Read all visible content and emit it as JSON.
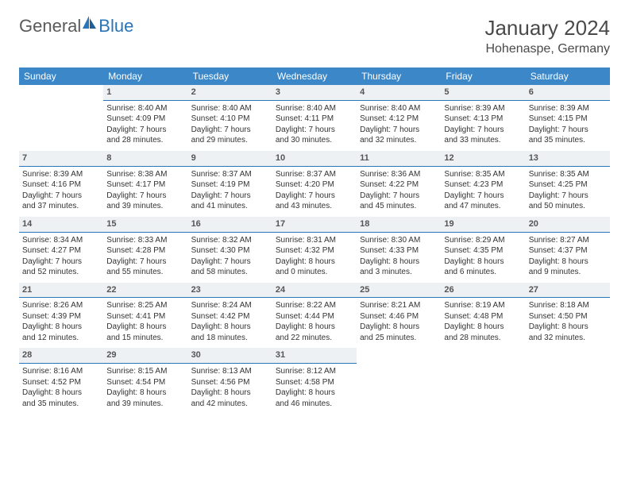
{
  "brand": {
    "part1": "General",
    "part2": "Blue"
  },
  "title": "January 2024",
  "location": "Hohenaspe, Germany",
  "colors": {
    "header_bg": "#3b87c8",
    "header_text": "#ffffff",
    "daynum_bg": "#eef1f3",
    "daynum_border": "#2a74b8",
    "body_text": "#333333",
    "logo_gray": "#5a5a5a",
    "logo_blue": "#2a74b8"
  },
  "weekdays": [
    "Sunday",
    "Monday",
    "Tuesday",
    "Wednesday",
    "Thursday",
    "Friday",
    "Saturday"
  ],
  "weeks": [
    [
      {
        "day": "",
        "sun": "",
        "set": "",
        "d1": "",
        "d2": ""
      },
      {
        "day": "1",
        "sun": "Sunrise: 8:40 AM",
        "set": "Sunset: 4:09 PM",
        "d1": "Daylight: 7 hours",
        "d2": "and 28 minutes."
      },
      {
        "day": "2",
        "sun": "Sunrise: 8:40 AM",
        "set": "Sunset: 4:10 PM",
        "d1": "Daylight: 7 hours",
        "d2": "and 29 minutes."
      },
      {
        "day": "3",
        "sun": "Sunrise: 8:40 AM",
        "set": "Sunset: 4:11 PM",
        "d1": "Daylight: 7 hours",
        "d2": "and 30 minutes."
      },
      {
        "day": "4",
        "sun": "Sunrise: 8:40 AM",
        "set": "Sunset: 4:12 PM",
        "d1": "Daylight: 7 hours",
        "d2": "and 32 minutes."
      },
      {
        "day": "5",
        "sun": "Sunrise: 8:39 AM",
        "set": "Sunset: 4:13 PM",
        "d1": "Daylight: 7 hours",
        "d2": "and 33 minutes."
      },
      {
        "day": "6",
        "sun": "Sunrise: 8:39 AM",
        "set": "Sunset: 4:15 PM",
        "d1": "Daylight: 7 hours",
        "d2": "and 35 minutes."
      }
    ],
    [
      {
        "day": "7",
        "sun": "Sunrise: 8:39 AM",
        "set": "Sunset: 4:16 PM",
        "d1": "Daylight: 7 hours",
        "d2": "and 37 minutes."
      },
      {
        "day": "8",
        "sun": "Sunrise: 8:38 AM",
        "set": "Sunset: 4:17 PM",
        "d1": "Daylight: 7 hours",
        "d2": "and 39 minutes."
      },
      {
        "day": "9",
        "sun": "Sunrise: 8:37 AM",
        "set": "Sunset: 4:19 PM",
        "d1": "Daylight: 7 hours",
        "d2": "and 41 minutes."
      },
      {
        "day": "10",
        "sun": "Sunrise: 8:37 AM",
        "set": "Sunset: 4:20 PM",
        "d1": "Daylight: 7 hours",
        "d2": "and 43 minutes."
      },
      {
        "day": "11",
        "sun": "Sunrise: 8:36 AM",
        "set": "Sunset: 4:22 PM",
        "d1": "Daylight: 7 hours",
        "d2": "and 45 minutes."
      },
      {
        "day": "12",
        "sun": "Sunrise: 8:35 AM",
        "set": "Sunset: 4:23 PM",
        "d1": "Daylight: 7 hours",
        "d2": "and 47 minutes."
      },
      {
        "day": "13",
        "sun": "Sunrise: 8:35 AM",
        "set": "Sunset: 4:25 PM",
        "d1": "Daylight: 7 hours",
        "d2": "and 50 minutes."
      }
    ],
    [
      {
        "day": "14",
        "sun": "Sunrise: 8:34 AM",
        "set": "Sunset: 4:27 PM",
        "d1": "Daylight: 7 hours",
        "d2": "and 52 minutes."
      },
      {
        "day": "15",
        "sun": "Sunrise: 8:33 AM",
        "set": "Sunset: 4:28 PM",
        "d1": "Daylight: 7 hours",
        "d2": "and 55 minutes."
      },
      {
        "day": "16",
        "sun": "Sunrise: 8:32 AM",
        "set": "Sunset: 4:30 PM",
        "d1": "Daylight: 7 hours",
        "d2": "and 58 minutes."
      },
      {
        "day": "17",
        "sun": "Sunrise: 8:31 AM",
        "set": "Sunset: 4:32 PM",
        "d1": "Daylight: 8 hours",
        "d2": "and 0 minutes."
      },
      {
        "day": "18",
        "sun": "Sunrise: 8:30 AM",
        "set": "Sunset: 4:33 PM",
        "d1": "Daylight: 8 hours",
        "d2": "and 3 minutes."
      },
      {
        "day": "19",
        "sun": "Sunrise: 8:29 AM",
        "set": "Sunset: 4:35 PM",
        "d1": "Daylight: 8 hours",
        "d2": "and 6 minutes."
      },
      {
        "day": "20",
        "sun": "Sunrise: 8:27 AM",
        "set": "Sunset: 4:37 PM",
        "d1": "Daylight: 8 hours",
        "d2": "and 9 minutes."
      }
    ],
    [
      {
        "day": "21",
        "sun": "Sunrise: 8:26 AM",
        "set": "Sunset: 4:39 PM",
        "d1": "Daylight: 8 hours",
        "d2": "and 12 minutes."
      },
      {
        "day": "22",
        "sun": "Sunrise: 8:25 AM",
        "set": "Sunset: 4:41 PM",
        "d1": "Daylight: 8 hours",
        "d2": "and 15 minutes."
      },
      {
        "day": "23",
        "sun": "Sunrise: 8:24 AM",
        "set": "Sunset: 4:42 PM",
        "d1": "Daylight: 8 hours",
        "d2": "and 18 minutes."
      },
      {
        "day": "24",
        "sun": "Sunrise: 8:22 AM",
        "set": "Sunset: 4:44 PM",
        "d1": "Daylight: 8 hours",
        "d2": "and 22 minutes."
      },
      {
        "day": "25",
        "sun": "Sunrise: 8:21 AM",
        "set": "Sunset: 4:46 PM",
        "d1": "Daylight: 8 hours",
        "d2": "and 25 minutes."
      },
      {
        "day": "26",
        "sun": "Sunrise: 8:19 AM",
        "set": "Sunset: 4:48 PM",
        "d1": "Daylight: 8 hours",
        "d2": "and 28 minutes."
      },
      {
        "day": "27",
        "sun": "Sunrise: 8:18 AM",
        "set": "Sunset: 4:50 PM",
        "d1": "Daylight: 8 hours",
        "d2": "and 32 minutes."
      }
    ],
    [
      {
        "day": "28",
        "sun": "Sunrise: 8:16 AM",
        "set": "Sunset: 4:52 PM",
        "d1": "Daylight: 8 hours",
        "d2": "and 35 minutes."
      },
      {
        "day": "29",
        "sun": "Sunrise: 8:15 AM",
        "set": "Sunset: 4:54 PM",
        "d1": "Daylight: 8 hours",
        "d2": "and 39 minutes."
      },
      {
        "day": "30",
        "sun": "Sunrise: 8:13 AM",
        "set": "Sunset: 4:56 PM",
        "d1": "Daylight: 8 hours",
        "d2": "and 42 minutes."
      },
      {
        "day": "31",
        "sun": "Sunrise: 8:12 AM",
        "set": "Sunset: 4:58 PM",
        "d1": "Daylight: 8 hours",
        "d2": "and 46 minutes."
      },
      {
        "day": "",
        "sun": "",
        "set": "",
        "d1": "",
        "d2": ""
      },
      {
        "day": "",
        "sun": "",
        "set": "",
        "d1": "",
        "d2": ""
      },
      {
        "day": "",
        "sun": "",
        "set": "",
        "d1": "",
        "d2": ""
      }
    ]
  ]
}
